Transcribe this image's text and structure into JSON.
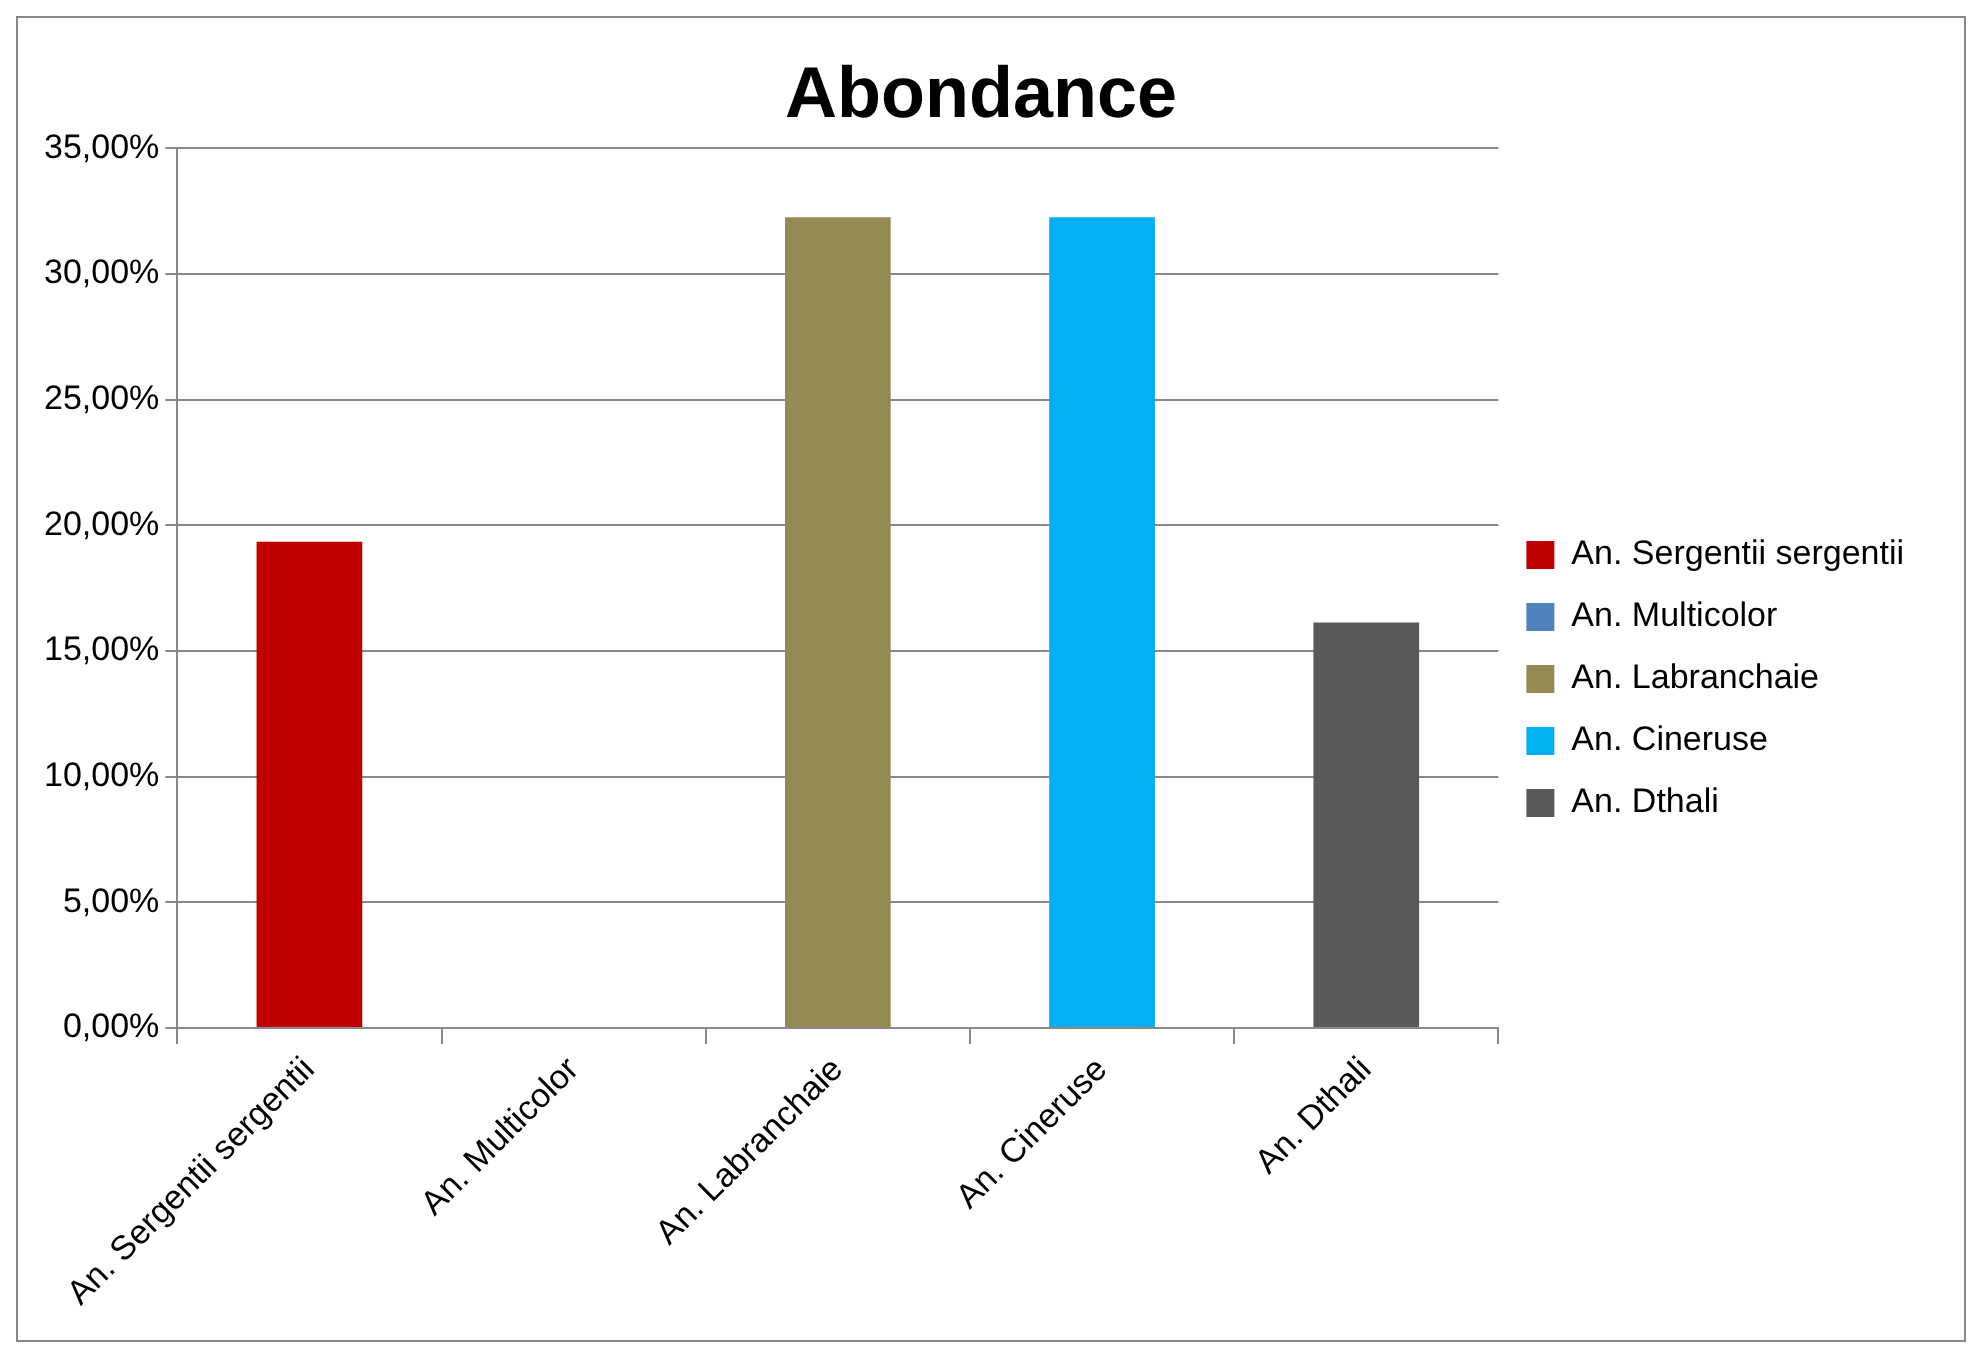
{
  "chart_data": {
    "type": "bar",
    "title": "Abondance",
    "categories": [
      "An. Sergentii sergentii",
      "An. Multicolor",
      "An. Labranchaie",
      "An. Cineruse",
      "An. Dthali"
    ],
    "series": [
      {
        "name": "An. Sergentii sergentii",
        "color": "#c00000",
        "values": [
          19.35,
          null,
          null,
          null,
          null
        ]
      },
      {
        "name": "An. Multicolor",
        "color": "#4f81bd",
        "values": [
          null,
          0,
          null,
          null,
          null
        ]
      },
      {
        "name": "An. Labranchaie",
        "color": "#948a54",
        "values": [
          null,
          null,
          32.26,
          null,
          null
        ]
      },
      {
        "name": "An. Cineruse",
        "color": "#00b0f0",
        "values": [
          null,
          null,
          null,
          32.26,
          null
        ]
      },
      {
        "name": "An. Dthali",
        "color": "#595959",
        "values": [
          null,
          null,
          null,
          null,
          16.13
        ]
      }
    ],
    "ylim": [
      0,
      35
    ],
    "yticks": [
      {
        "value": 0,
        "label": "0,00%"
      },
      {
        "value": 5,
        "label": "5,00%"
      },
      {
        "value": 10,
        "label": "10,00%"
      },
      {
        "value": 15,
        "label": "15,00%"
      },
      {
        "value": 20,
        "label": "20,00%"
      },
      {
        "value": 25,
        "label": "25,00%"
      },
      {
        "value": 30,
        "label": "30,00%"
      },
      {
        "value": 35,
        "label": "35,00%"
      }
    ],
    "grid": "y",
    "legend": "right"
  }
}
